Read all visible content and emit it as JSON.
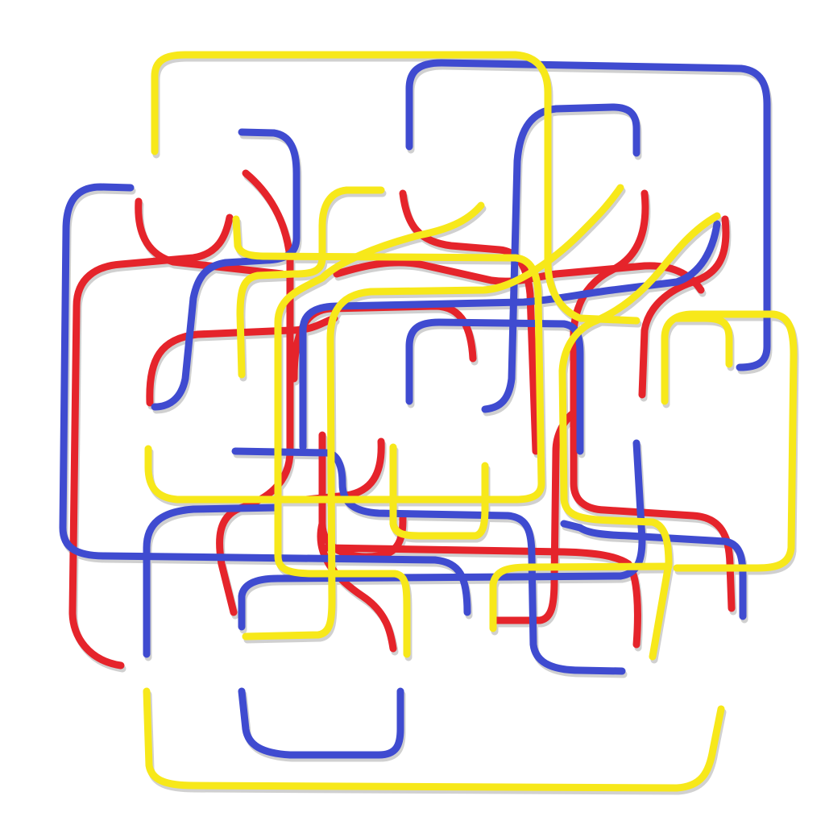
{
  "palette": {
    "background": "#ffffff",
    "red": "#e5242b",
    "blue": "#3f4bd0",
    "yellow": "#f7e81a"
  },
  "stroke_colors": [
    "red",
    "blue",
    "yellow"
  ]
}
